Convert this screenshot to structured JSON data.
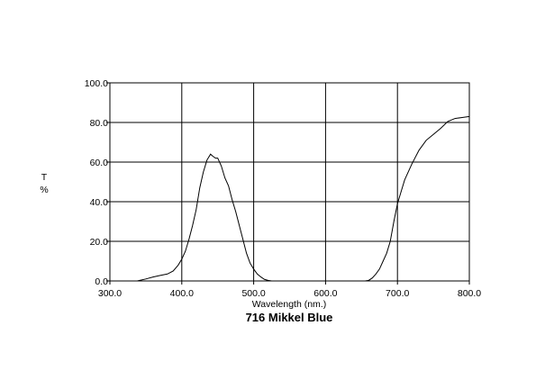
{
  "chart_data": {
    "type": "line",
    "title": "716 Mikkel Blue",
    "xlabel": "Wavelength (nm.)",
    "ylabel_top": "T",
    "ylabel_bottom": "%",
    "xlim": [
      300,
      800
    ],
    "ylim": [
      0,
      100
    ],
    "x_ticks": [
      300,
      400,
      500,
      600,
      700,
      800
    ],
    "y_ticks": [
      0,
      20,
      40,
      60,
      80,
      100
    ],
    "x_tick_labels": [
      "300.0",
      "400.0",
      "500.0",
      "600.0",
      "700.0",
      "800.0"
    ],
    "y_tick_labels": [
      "0.0",
      "20.0",
      "40.0",
      "60.0",
      "80.0",
      "100.0"
    ],
    "grid": true,
    "colors": {
      "line": "#000000",
      "grid": "#000000",
      "background": "#ffffff"
    },
    "series": [
      {
        "x": [
          338,
          350,
          360,
          370,
          380,
          388,
          395,
          400,
          405,
          410,
          415,
          420,
          425,
          430,
          435,
          440,
          443,
          447,
          450,
          455,
          460,
          465,
          470,
          475,
          480,
          485,
          490,
          495,
          500,
          505,
          510,
          515,
          520,
          525,
          530,
          540,
          550,
          560,
          580,
          600,
          620,
          640,
          655,
          660,
          665,
          670,
          675,
          680,
          685,
          690,
          695,
          700,
          705,
          710,
          720,
          730,
          740,
          750,
          760,
          770,
          780,
          790,
          800
        ],
        "y": [
          0,
          1,
          2,
          2.8,
          3.5,
          5,
          8,
          11,
          15,
          21,
          28,
          36,
          47,
          55,
          61,
          64,
          63,
          62,
          62,
          58,
          52,
          48,
          41,
          35,
          28,
          21,
          14,
          9,
          6,
          3.5,
          2,
          0.8,
          0.3,
          0,
          0,
          0,
          0,
          0,
          0,
          0,
          0,
          0,
          0,
          0.3,
          1.5,
          3.5,
          6,
          10,
          14,
          20,
          30,
          39,
          45,
          51,
          59,
          66,
          71,
          74,
          77,
          80.5,
          82,
          82.5,
          83
        ]
      }
    ]
  }
}
